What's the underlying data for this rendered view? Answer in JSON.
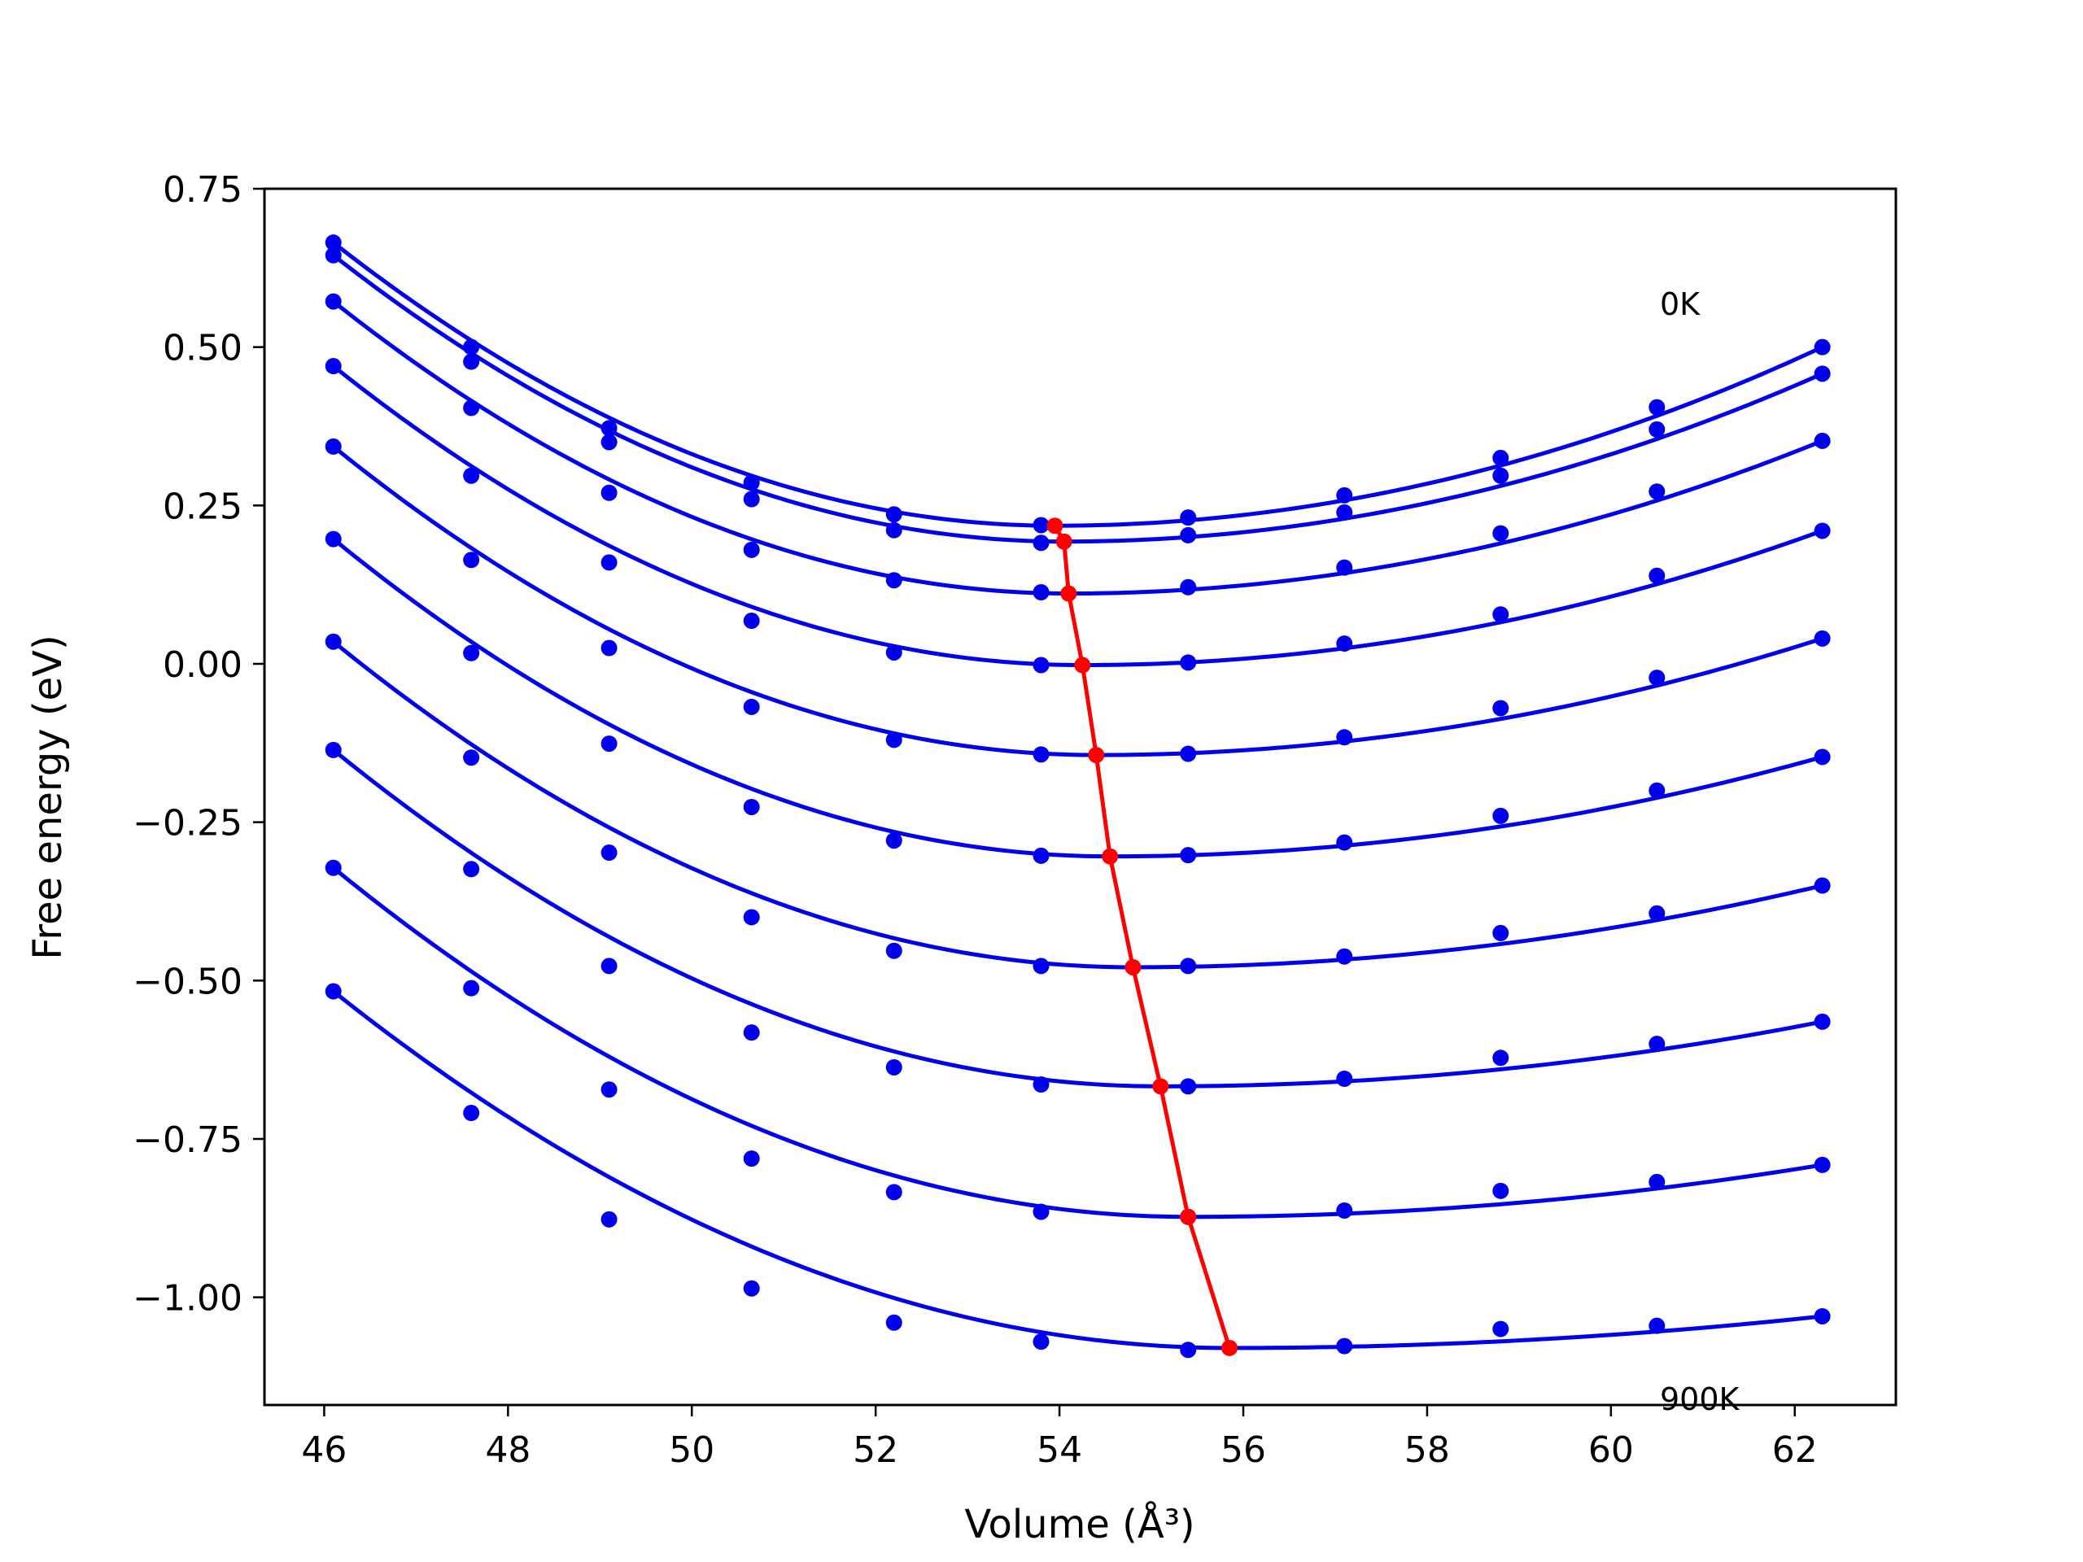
{
  "chart_data": {
    "type": "line",
    "xlabel": "Volume (Å³)",
    "ylabel": "Free energy (eV)",
    "xlim": [
      45.35,
      63.1
    ],
    "ylim": [
      -1.17,
      0.75
    ],
    "xticks": [
      46,
      48,
      50,
      52,
      54,
      56,
      58,
      60,
      62
    ],
    "xtick_labels": [
      "46",
      "48",
      "50",
      "52",
      "54",
      "56",
      "58",
      "60",
      "62"
    ],
    "yticks": [
      0.75,
      0.5,
      0.25,
      0.0,
      -0.25,
      -0.5,
      -0.75,
      -1.0
    ],
    "ytick_labels": [
      "0.75",
      "0.50",
      "0.25",
      "0.00",
      "−0.25",
      "−0.50",
      "−0.75",
      "−1.00"
    ],
    "annotations": [
      {
        "text": "0K",
        "x": 60.5,
        "y": 0.555
      },
      {
        "text": "900K",
        "x": 60.5,
        "y": -1.11
      }
    ],
    "x": [
      46.1,
      47.6,
      49.1,
      50.65,
      52.2,
      53.8,
      55.4,
      57.1,
      58.8,
      60.5,
      62.3
    ],
    "series": [
      {
        "color": "#0000ee",
        "values": [
          0.665,
          0.5,
          0.372,
          0.286,
          0.236,
          0.219,
          0.231,
          0.266,
          0.325,
          0.405,
          0.5
        ],
        "fit_min": [
          53.95,
          0.218
        ]
      },
      {
        "color": "#0000ee",
        "values": [
          0.645,
          0.477,
          0.35,
          0.26,
          0.211,
          0.191,
          0.203,
          0.239,
          0.297,
          0.37,
          0.458
        ],
        "fit_min": [
          54.05,
          0.193
        ]
      },
      {
        "color": "#0000ee",
        "values": [
          0.572,
          0.404,
          0.27,
          0.18,
          0.132,
          0.113,
          0.121,
          0.152,
          0.206,
          0.272,
          0.352
        ],
        "fit_min": [
          54.1,
          0.111
        ]
      },
      {
        "color": "#0000ee",
        "values": [
          0.47,
          0.297,
          0.16,
          0.068,
          0.018,
          -0.002,
          0.002,
          0.032,
          0.078,
          0.139,
          0.21
        ],
        "fit_min": [
          54.25,
          -0.002
        ]
      },
      {
        "color": "#0000ee",
        "values": [
          0.343,
          0.164,
          0.025,
          -0.068,
          -0.12,
          -0.143,
          -0.142,
          -0.116,
          -0.07,
          -0.022,
          0.04
        ],
        "fit_min": [
          54.4,
          -0.144
        ]
      },
      {
        "color": "#0000ee",
        "values": [
          0.197,
          0.017,
          -0.126,
          -0.226,
          -0.279,
          -0.303,
          -0.302,
          -0.282,
          -0.24,
          -0.2,
          -0.147
        ],
        "fit_min": [
          54.55,
          -0.304
        ]
      },
      {
        "color": "#0000ee",
        "values": [
          0.035,
          -0.148,
          -0.298,
          -0.4,
          -0.453,
          -0.477,
          -0.477,
          -0.462,
          -0.425,
          -0.394,
          -0.35
        ],
        "fit_min": [
          54.8,
          -0.479
        ]
      },
      {
        "color": "#0000ee",
        "values": [
          -0.136,
          -0.324,
          -0.477,
          -0.582,
          -0.637,
          -0.664,
          -0.667,
          -0.655,
          -0.622,
          -0.6,
          -0.565
        ],
        "fit_min": [
          55.1,
          -0.667
        ]
      },
      {
        "color": "#0000ee",
        "values": [
          -0.322,
          -0.512,
          -0.672,
          -0.781,
          -0.834,
          -0.865,
          -0.873,
          -0.863,
          -0.832,
          -0.818,
          -0.791
        ],
        "fit_min": [
          55.4,
          -0.873
        ]
      },
      {
        "color": "#0000ee",
        "values": [
          -0.517,
          -0.709,
          -0.877,
          -0.986,
          -1.04,
          -1.07,
          -1.083,
          -1.077,
          -1.05,
          -1.045,
          -1.03
        ],
        "fit_min": [
          55.85,
          -1.08
        ]
      }
    ],
    "minima_line": {
      "color": "#ff0000",
      "x": [
        53.95,
        54.05,
        54.1,
        54.25,
        54.4,
        54.55,
        54.8,
        55.1,
        55.4,
        55.85
      ],
      "y": [
        0.218,
        0.193,
        0.111,
        -0.002,
        -0.144,
        -0.304,
        -0.479,
        -0.667,
        -0.873,
        -1.08
      ]
    }
  }
}
